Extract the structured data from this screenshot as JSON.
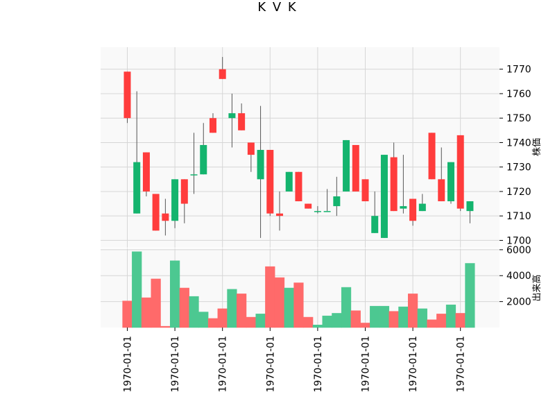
{
  "chart_data": {
    "type": "candlestick",
    "title": "K V K",
    "price_panel": {
      "ylabel": "株価",
      "ylim": [
        1697,
        1779
      ],
      "yticks": [
        1700,
        1710,
        1720,
        1730,
        1740,
        1750,
        1760,
        1770
      ],
      "grid": true,
      "y_axis_side": "right"
    },
    "volume_panel": {
      "ylabel": "出来高",
      "ylim": [
        0,
        6100
      ],
      "yticks": [
        2000,
        4000,
        6000
      ],
      "grid": true,
      "y_axis_side": "right"
    },
    "x_tick_labels": [
      "1970-01-01",
      "1970-01-01",
      "1970-01-01",
      "1970-01-01",
      "1970-01-01",
      "1970-01-01",
      "1970-01-01",
      "1970-01-01"
    ],
    "x_tick_positions": [
      0,
      5,
      10,
      15,
      20,
      25,
      30,
      35
    ],
    "colors": {
      "up": "#14b46e",
      "down": "#ff3c3c",
      "up_volume": "#4cc891",
      "down_volume": "#ff6a6a",
      "wick": "#555555",
      "panel_bg": "#f9f9f9",
      "grid": "#d6d6d6"
    },
    "candles": [
      {
        "open": 1769,
        "high": 1769,
        "low": 1748,
        "close": 1750,
        "volume": 2050
      },
      {
        "open": 1711,
        "high": 1761,
        "low": 1711,
        "close": 1732,
        "volume": 5850
      },
      {
        "open": 1736,
        "high": 1736,
        "low": 1718,
        "close": 1720,
        "volume": 2300
      },
      {
        "open": 1719,
        "high": 1719,
        "low": 1704,
        "close": 1704,
        "volume": 3750
      },
      {
        "open": 1711,
        "high": 1717,
        "low": 1702,
        "close": 1708,
        "volume": 100
      },
      {
        "open": 1708,
        "high": 1725,
        "low": 1705,
        "close": 1725,
        "volume": 5150
      },
      {
        "open": 1725,
        "high": 1725,
        "low": 1707,
        "close": 1715,
        "volume": 3050
      },
      {
        "open": 1727,
        "high": 1744,
        "low": 1719,
        "close": 1727,
        "volume": 2400
      },
      {
        "open": 1727,
        "high": 1748,
        "low": 1727,
        "close": 1739,
        "volume": 1200
      },
      {
        "open": 1750,
        "high": 1752,
        "low": 1744,
        "close": 1744,
        "volume": 700
      },
      {
        "open": 1770,
        "high": 1775,
        "low": 1766,
        "close": 1766,
        "volume": 1450
      },
      {
        "open": 1750,
        "high": 1760,
        "low": 1738,
        "close": 1752,
        "volume": 2950
      },
      {
        "open": 1752,
        "high": 1756,
        "low": 1745,
        "close": 1745,
        "volume": 2600
      },
      {
        "open": 1740,
        "high": 1740,
        "low": 1728,
        "close": 1735,
        "volume": 800
      },
      {
        "open": 1725,
        "high": 1755,
        "low": 1701,
        "close": 1737,
        "volume": 1050
      },
      {
        "open": 1737,
        "high": 1737,
        "low": 1710,
        "close": 1711,
        "volume": 4700
      },
      {
        "open": 1711,
        "high": 1720,
        "low": 1704,
        "close": 1710,
        "volume": 3850
      },
      {
        "open": 1720,
        "high": 1728,
        "low": 1720,
        "close": 1728,
        "volume": 3050
      },
      {
        "open": 1728,
        "high": 1728,
        "low": 1716,
        "close": 1716,
        "volume": 3450
      },
      {
        "open": 1715,
        "high": 1715,
        "low": 1713,
        "close": 1713,
        "volume": 800
      },
      {
        "open": 1712,
        "high": 1714,
        "low": 1711,
        "close": 1712,
        "volume": 200
      },
      {
        "open": 1712,
        "high": 1721,
        "low": 1712,
        "close": 1712,
        "volume": 900
      },
      {
        "open": 1714,
        "high": 1726,
        "low": 1710,
        "close": 1718,
        "volume": 1100
      },
      {
        "open": 1720,
        "high": 1741,
        "low": 1720,
        "close": 1741,
        "volume": 3100
      },
      {
        "open": 1739,
        "high": 1739,
        "low": 1720,
        "close": 1720,
        "volume": 1300
      },
      {
        "open": 1725,
        "high": 1725,
        "low": 1716,
        "close": 1716,
        "volume": 350
      },
      {
        "open": 1703,
        "high": 1720,
        "low": 1703,
        "close": 1710,
        "volume": 1650
      },
      {
        "open": 1701,
        "high": 1735,
        "low": 1701,
        "close": 1735,
        "volume": 1650
      },
      {
        "open": 1734,
        "high": 1740,
        "low": 1712,
        "close": 1712,
        "volume": 1250
      },
      {
        "open": 1713,
        "high": 1735,
        "low": 1711,
        "close": 1714,
        "volume": 1600
      },
      {
        "open": 1717,
        "high": 1717,
        "low": 1706,
        "close": 1708,
        "volume": 2600
      },
      {
        "open": 1712,
        "high": 1719,
        "low": 1712,
        "close": 1715,
        "volume": 1450
      },
      {
        "open": 1744,
        "high": 1744,
        "low": 1725,
        "close": 1725,
        "volume": 600
      },
      {
        "open": 1725,
        "high": 1738,
        "low": 1716,
        "close": 1716,
        "volume": 1050
      },
      {
        "open": 1716,
        "high": 1732,
        "low": 1715,
        "close": 1732,
        "volume": 1750
      },
      {
        "open": 1743,
        "high": 1743,
        "low": 1712,
        "close": 1713,
        "volume": 1100
      },
      {
        "open": 1712,
        "high": 1716,
        "low": 1707,
        "close": 1716,
        "volume": 4950
      }
    ]
  }
}
